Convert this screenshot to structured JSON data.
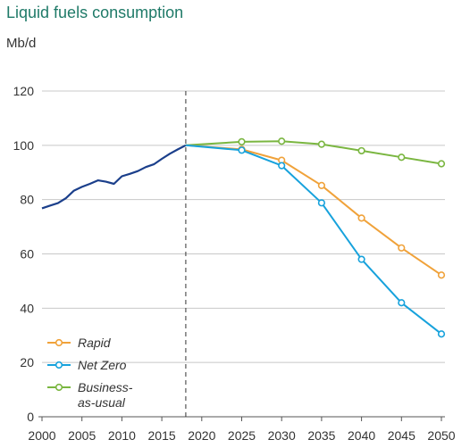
{
  "chart_data": {
    "type": "line",
    "title": "Liquid fuels consumption",
    "ylabel": "Mb/d",
    "xlabel": "",
    "ylim": [
      0,
      120
    ],
    "xlim": [
      2000,
      2050
    ],
    "y_ticks": [
      0,
      20,
      40,
      60,
      80,
      100,
      120
    ],
    "x_ticks": [
      2000,
      2005,
      2010,
      2015,
      2020,
      2025,
      2030,
      2035,
      2040,
      2045,
      2050
    ],
    "grid": true,
    "divider_year": 2018,
    "legend_position": "bottom-left",
    "history": {
      "color": "#1b3f8b",
      "points": [
        [
          2000,
          76.8
        ],
        [
          2001,
          77.8
        ],
        [
          2002,
          78.7
        ],
        [
          2003,
          80.5
        ],
        [
          2004,
          83.3
        ],
        [
          2005,
          84.7
        ],
        [
          2006,
          85.8
        ],
        [
          2007,
          87.1
        ],
        [
          2008,
          86.6
        ],
        [
          2009,
          85.8
        ],
        [
          2010,
          88.6
        ],
        [
          2011,
          89.5
        ],
        [
          2012,
          90.5
        ],
        [
          2013,
          92.0
        ],
        [
          2014,
          93.0
        ],
        [
          2015,
          95.0
        ],
        [
          2016,
          96.9
        ],
        [
          2017,
          98.5
        ],
        [
          2018,
          100.0
        ]
      ]
    },
    "series": [
      {
        "name": "Rapid",
        "color": "#f0a23a",
        "points": [
          [
            2018,
            100.0
          ],
          [
            2025,
            98.5
          ],
          [
            2030,
            94.5
          ],
          [
            2035,
            85.2
          ],
          [
            2040,
            73.2
          ],
          [
            2045,
            62.2
          ],
          [
            2050,
            52.2
          ]
        ]
      },
      {
        "name": "Net Zero",
        "color": "#17a2dc",
        "points": [
          [
            2018,
            100.0
          ],
          [
            2025,
            98.2
          ],
          [
            2030,
            92.5
          ],
          [
            2035,
            78.8
          ],
          [
            2040,
            58.0
          ],
          [
            2045,
            42.0
          ],
          [
            2050,
            30.5
          ]
        ]
      },
      {
        "name": "Business-\nas-usual",
        "color": "#7ab640",
        "points": [
          [
            2018,
            100.0
          ],
          [
            2025,
            101.3
          ],
          [
            2030,
            101.5
          ],
          [
            2035,
            100.4
          ],
          [
            2040,
            98.0
          ],
          [
            2045,
            95.6
          ],
          [
            2050,
            93.2
          ]
        ]
      }
    ]
  }
}
